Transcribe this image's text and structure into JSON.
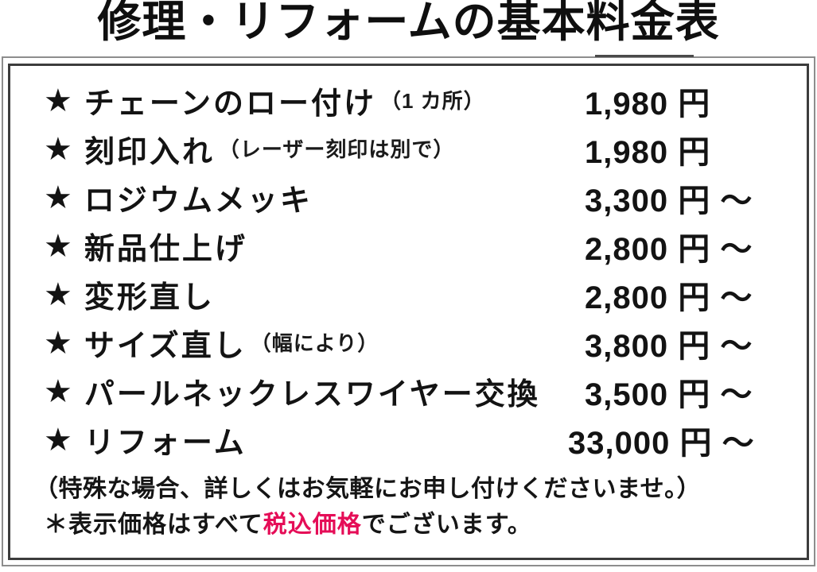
{
  "title": "修理・リフォームの基本料金表",
  "table": {
    "star": "★",
    "rows": [
      {
        "label": "チェーンのロー付け",
        "note": "（1 カ所）",
        "price": "1,980 円"
      },
      {
        "label": "刻印入れ",
        "note": "（レーザー刻印は別で）",
        "price": "1,980 円"
      },
      {
        "label": "ロジウムメッキ",
        "note": "",
        "price": "3,300 円 ～"
      },
      {
        "label": "新品仕上げ",
        "note": "",
        "price": "2,800 円 ～"
      },
      {
        "label": "変形直し",
        "note": "",
        "price": "2,800 円 ～"
      },
      {
        "label": "サイズ直し",
        "note": "（幅により）",
        "price": "3,800 円 ～"
      },
      {
        "label": "パールネックレスワイヤー交換",
        "note": "",
        "price": "3,500 円 ～"
      },
      {
        "label": "リフォーム",
        "note": "",
        "price": "33,000 円 ～"
      }
    ]
  },
  "footer": {
    "line1": "（特殊な場合、詳しくはお気軽にお申し付けくださいませ。）",
    "line2_prefix": "＊表示価格はすべて",
    "line2_highlight": "税込価格",
    "line2_suffix": "でございます。"
  },
  "colors": {
    "text": "#141414",
    "highlight_pink": "#e50d57",
    "inner_border": "#3c3c3c",
    "outer_border": "#8d8d8d"
  }
}
